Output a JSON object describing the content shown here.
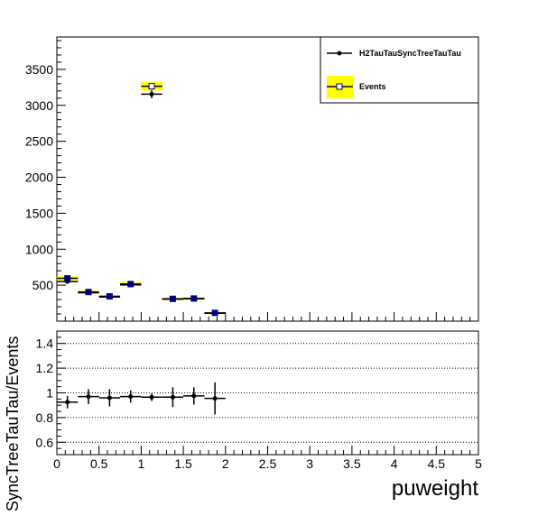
{
  "chart_data": [
    {
      "type": "scatter",
      "panel": "top",
      "title": "",
      "xlabel": "",
      "ylabel": "",
      "xlim": [
        0,
        5
      ],
      "ylim": [
        0,
        3950
      ],
      "yticks": [
        500,
        1000,
        1500,
        2000,
        2500,
        3000,
        3500
      ],
      "bin_width": 0.25,
      "legend": {
        "placement": "top-right",
        "entries": [
          "H2TauTauSyncTreeTauTau",
          "Events"
        ]
      },
      "series": [
        {
          "name": "H2TauTauSyncTreeTauTau",
          "marker": "filled-circle",
          "color": "#000000",
          "x": [
            0.125,
            0.375,
            0.625,
            0.875,
            1.125,
            1.375,
            1.625,
            1.875
          ],
          "y": [
            550,
            395,
            335,
            505,
            3155,
            305,
            310,
            110
          ],
          "yerr": [
            22,
            19,
            17,
            21,
            55,
            17,
            17,
            10
          ]
        },
        {
          "name": "Events",
          "marker": "open-square",
          "color": "#000080",
          "band_color": "#ffff00",
          "x": [
            0.125,
            0.375,
            0.625,
            0.875,
            1.125,
            1.375,
            1.625,
            1.875
          ],
          "y": [
            595,
            405,
            345,
            515,
            3265,
            310,
            315,
            115
          ],
          "yerr": [
            30,
            20,
            17,
            26,
            60,
            16,
            16,
            8
          ]
        }
      ]
    },
    {
      "type": "scatter",
      "panel": "ratio",
      "title": "",
      "xlabel": "puweight",
      "ylabel": "SyncTreeTauTau/Events",
      "xlim": [
        0,
        5
      ],
      "ylim": [
        0.5,
        1.5
      ],
      "xticks": [
        0,
        0.5,
        1,
        1.5,
        2,
        2.5,
        3,
        3.5,
        4,
        4.5,
        5
      ],
      "xtick_labels": [
        "0",
        "0.5",
        "1",
        "1.5",
        "2",
        "2.5",
        "3",
        "3.5",
        "4",
        "4.5",
        "5"
      ],
      "yticks": [
        0.6,
        0.8,
        1,
        1.2,
        1.4
      ],
      "ytick_labels": [
        "0.6",
        "0.8",
        "1",
        "1.2",
        "1.4"
      ],
      "grid": true,
      "series": [
        {
          "marker": "filled-circle",
          "color": "#000000",
          "x": [
            0.125,
            0.375,
            0.625,
            0.875,
            1.125,
            1.375,
            1.625,
            1.875
          ],
          "y": [
            0.925,
            0.97,
            0.96,
            0.97,
            0.965,
            0.965,
            0.975,
            0.955
          ],
          "yerr": [
            0.05,
            0.06,
            0.07,
            0.05,
            0.03,
            0.08,
            0.07,
            0.13
          ]
        }
      ]
    }
  ]
}
